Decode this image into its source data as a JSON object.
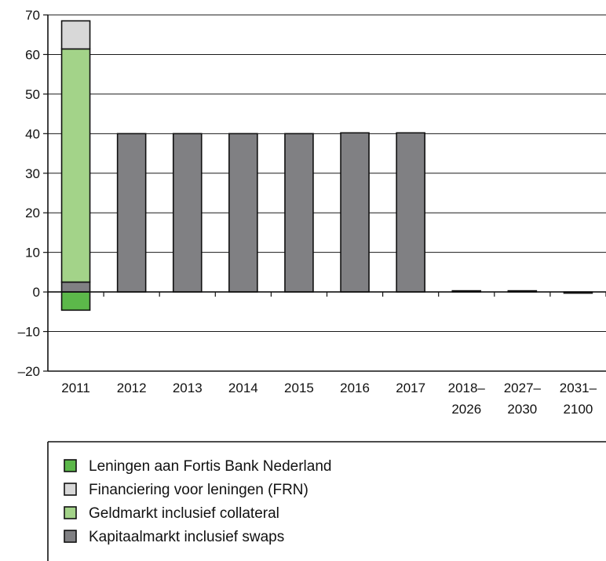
{
  "chart_data": {
    "type": "bar",
    "stacked": true,
    "categories": [
      [
        "2011"
      ],
      [
        "2012"
      ],
      [
        "2013"
      ],
      [
        "2014"
      ],
      [
        "2015"
      ],
      [
        "2016"
      ],
      [
        "2017"
      ],
      [
        "2018–",
        "2026"
      ],
      [
        "2027–",
        "2030"
      ],
      [
        "2031–",
        "2100"
      ]
    ],
    "ylim": [
      -20,
      70
    ],
    "yticks": [
      "70",
      "60",
      "50",
      "40",
      "30",
      "20",
      "10",
      "0",
      "–10",
      "–20"
    ],
    "grid": true,
    "legend_position": "bottom",
    "series": [
      {
        "name": "Leningen aan Fortis Bank Nederland",
        "color": "#5cb84a",
        "values": [
          -4.6,
          0,
          0,
          0,
          0,
          0,
          0,
          0,
          0,
          0
        ]
      },
      {
        "name": "Financiering voor leningen (FRN)",
        "color": "#d8d8d8",
        "values": [
          7.1,
          0,
          0,
          0,
          0,
          0,
          0,
          0,
          0,
          0
        ]
      },
      {
        "name": "Geldmarkt inclusief collateral",
        "color": "#a3d389",
        "values": [
          58.9,
          0,
          0,
          0,
          0,
          0,
          0,
          0,
          0,
          0
        ]
      },
      {
        "name": "Kapitaalmarkt inclusief swaps",
        "color": "#808083",
        "values": [
          2.5,
          40.0,
          40.0,
          40.0,
          40.0,
          40.2,
          40.2,
          0.3,
          0.3,
          -0.2
        ]
      }
    ],
    "stack_order": [
      3,
      2,
      1
    ],
    "legend_order": [
      0,
      1,
      2,
      3
    ]
  }
}
